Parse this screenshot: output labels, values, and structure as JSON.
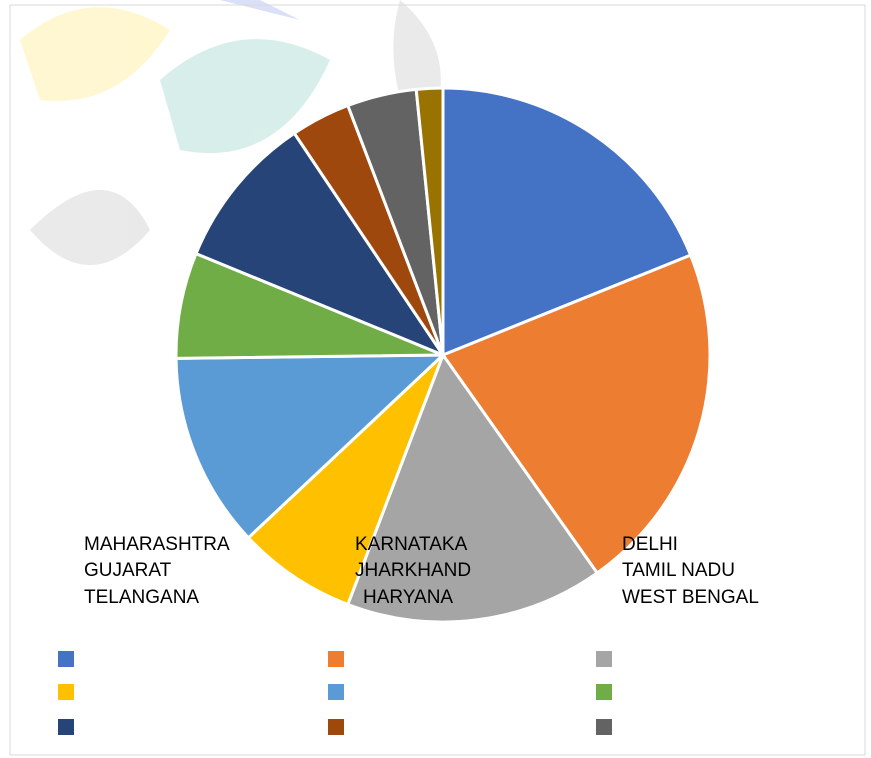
{
  "chart_data": {
    "type": "pie",
    "categories": [
      null,
      null,
      null,
      null,
      null,
      null,
      null,
      null,
      null,
      null
    ],
    "values": [
      18.9,
      21.3,
      15.6,
      7.2,
      11.8,
      6.4,
      9.4,
      3.6,
      4.2,
      1.6
    ],
    "colors": [
      "#4472c4",
      "#ed7d31",
      "#a5a5a5",
      "#ffc000",
      "#5b9bd5",
      "#70ad47",
      "#264478",
      "#9e480e",
      "#636363",
      "#997300"
    ],
    "annotations": [
      [
        "MAHARASHTRA",
        "GUJARAT",
        "TELANGANA"
      ],
      [
        "KARNATAKA",
        "JHARKHAND",
        "HARYANA"
      ],
      [
        "DELHI",
        "TAMIL NADU",
        "WEST BENGAL"
      ]
    ]
  }
}
